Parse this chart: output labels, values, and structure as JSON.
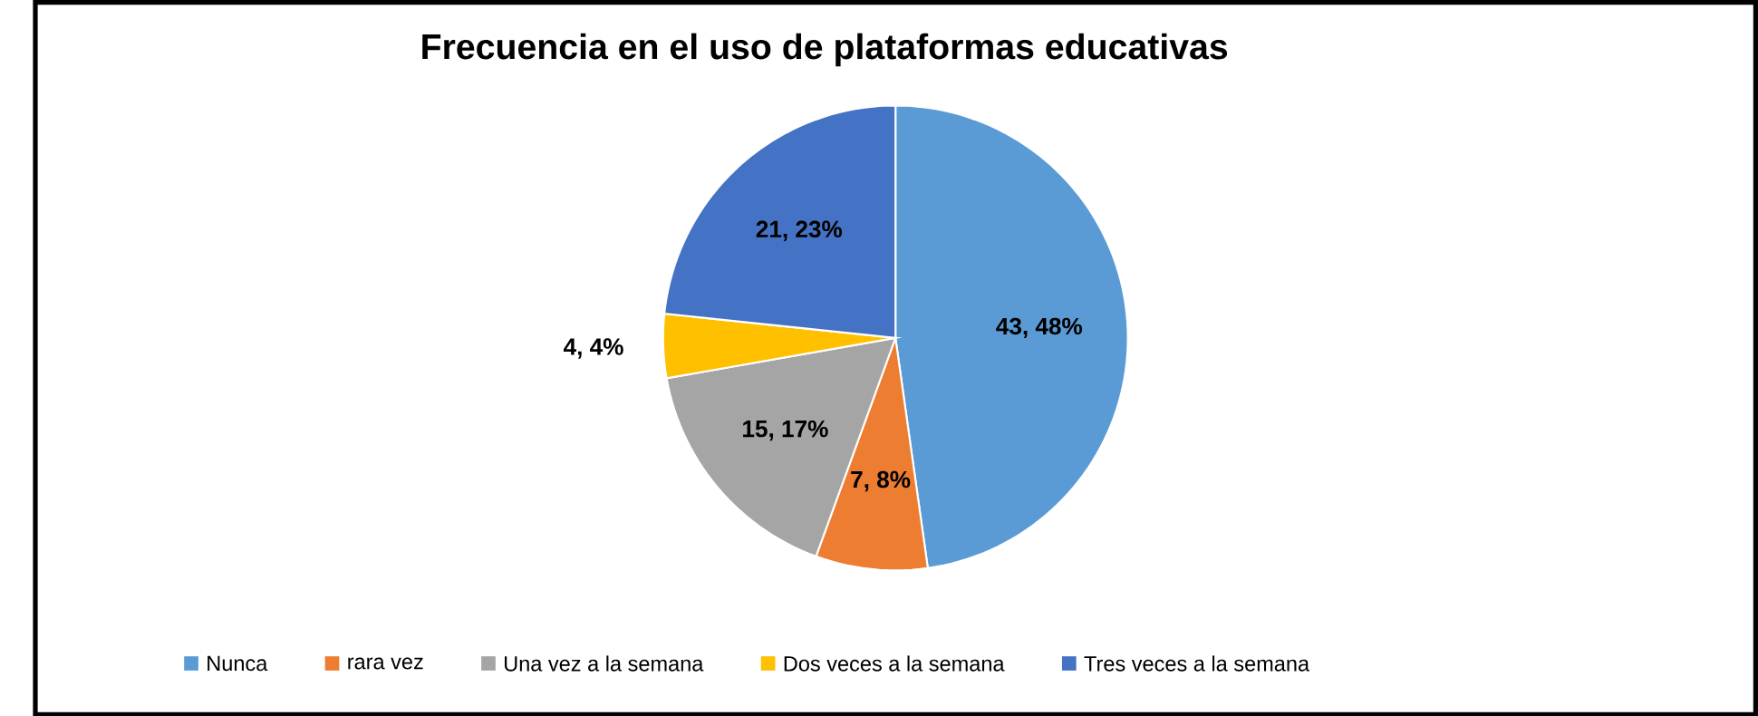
{
  "chart_data": {
    "type": "pie",
    "title": "Frecuencia en el uso de plataformas educativas",
    "categories": [
      "Nunca",
      "rara vez",
      "Una vez a la semana",
      "Dos veces a la semana",
      "Tres veces a la semana"
    ],
    "values": [
      43,
      7,
      15,
      4,
      21
    ],
    "value_labels": [
      "43, 48%",
      "7, 8%",
      "15, 17%",
      "4, 4%",
      "21, 23%"
    ],
    "colors": [
      "#5b9bd5",
      "#ed7d31",
      "#a5a5a5",
      "#ffc000",
      "#4472c4"
    ],
    "legend": "bottom"
  }
}
